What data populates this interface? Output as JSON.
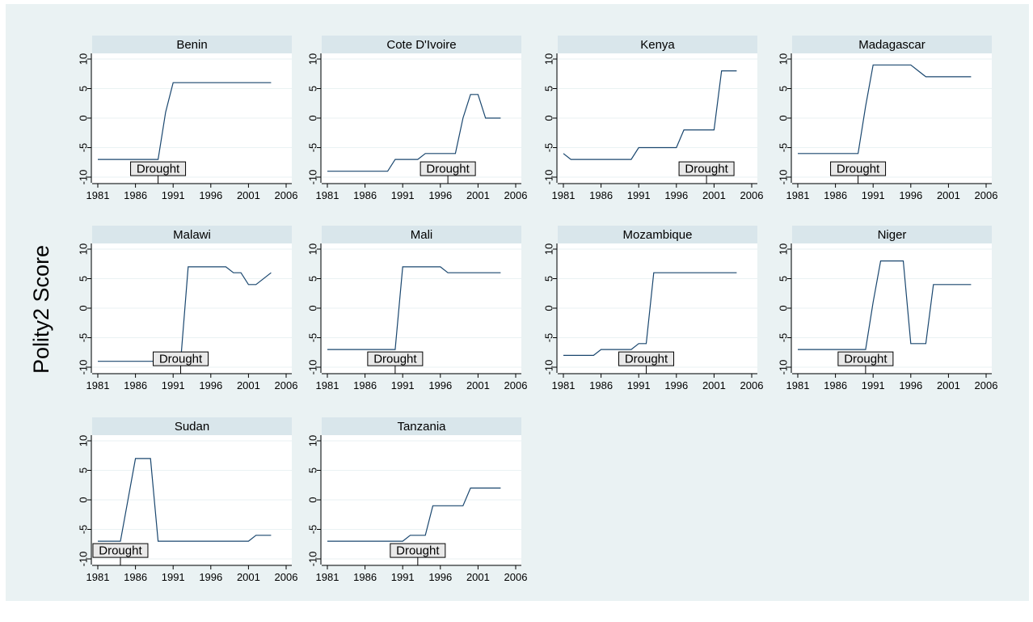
{
  "chart_data": {
    "type": "line",
    "ylabel": "Polity2 Score",
    "xlim": [
      1981,
      2006
    ],
    "ylim": [
      -10,
      10
    ],
    "x_ticks": [
      1981,
      1986,
      1991,
      1996,
      2001,
      2006
    ],
    "y_ticks": [
      -10,
      -5,
      0,
      5,
      10
    ],
    "annotation_label": "Drought",
    "colors": {
      "line": "#1a476f",
      "title_bg": "#d9e6eb",
      "background": "#eaf2f3",
      "plot_bg": "#ffffff",
      "grid": "#eaf2f3"
    },
    "panels": [
      {
        "title": "Benin",
        "drought_year": 1989,
        "x": [
          1981,
          1989,
          1990,
          1991,
          2004
        ],
        "y": [
          -7,
          -7,
          1,
          6,
          6
        ]
      },
      {
        "title": "Cote D'Ivoire",
        "drought_year": 1997,
        "x": [
          1981,
          1989,
          1990,
          1993,
          1994,
          1998,
          1999,
          2000,
          2001,
          2002,
          2004
        ],
        "y": [
          -9,
          -9,
          -7,
          -7,
          -6,
          -6,
          0,
          4,
          4,
          0,
          0
        ]
      },
      {
        "title": "Kenya",
        "drought_year": 2000,
        "x": [
          1981,
          1982,
          1990,
          1991,
          1996,
          1997,
          2001,
          2002,
          2004
        ],
        "y": [
          -6,
          -7,
          -7,
          -5,
          -5,
          -2,
          -2,
          8,
          8
        ]
      },
      {
        "title": "Madagascar",
        "drought_year": 1989,
        "x": [
          1981,
          1989,
          1990,
          1991,
          1996,
          1997,
          1998,
          2004
        ],
        "y": [
          -6,
          -6,
          2,
          9,
          9,
          8,
          7,
          7
        ]
      },
      {
        "title": "Malawi",
        "drought_year": 1992,
        "x": [
          1981,
          1992,
          1993,
          1998,
          1999,
          2000,
          2001,
          2002,
          2004
        ],
        "y": [
          -9,
          -9,
          7,
          7,
          6,
          6,
          4,
          4,
          6
        ]
      },
      {
        "title": "Mali",
        "drought_year": 1990,
        "x": [
          1981,
          1990,
          1991,
          1996,
          1997,
          2004
        ],
        "y": [
          -7,
          -7,
          7,
          7,
          6,
          6
        ]
      },
      {
        "title": "Mozambique",
        "drought_year": 1992,
        "x": [
          1981,
          1985,
          1986,
          1990,
          1991,
          1992,
          1993,
          2004
        ],
        "y": [
          -8,
          -8,
          -7,
          -7,
          -6,
          -6,
          6,
          6
        ]
      },
      {
        "title": "Niger",
        "drought_year": 1990,
        "x": [
          1981,
          1990,
          1991,
          1992,
          1995,
          1996,
          1998,
          1999,
          2004
        ],
        "y": [
          -7,
          -7,
          1,
          8,
          8,
          -6,
          -6,
          4,
          4
        ]
      },
      {
        "title": "Sudan",
        "drought_year": 1984,
        "x": [
          1981,
          1984,
          1986,
          1988,
          1989,
          2001,
          2002,
          2004
        ],
        "y": [
          -7,
          -7,
          7,
          7,
          -7,
          -7,
          -6,
          -6
        ]
      },
      {
        "title": "Tanzania",
        "drought_year": 1993,
        "x": [
          1981,
          1991,
          1992,
          1994,
          1995,
          1999,
          2000,
          2004
        ],
        "y": [
          -7,
          -7,
          -6,
          -6,
          -1,
          -1,
          2,
          2
        ]
      }
    ]
  }
}
